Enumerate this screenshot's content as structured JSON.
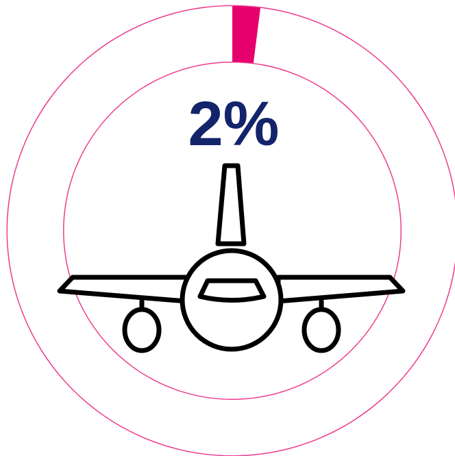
{
  "chart_data": {
    "type": "pie",
    "title": "",
    "value_label": "2%",
    "slices": [
      {
        "value": 2,
        "color": "#e6006e"
      },
      {
        "value": 98,
        "color": "#ffffff"
      }
    ]
  },
  "colors": {
    "ring_outline": "#ee3d8f",
    "highlight_slice": "#e6006e",
    "label_text": "#13246b",
    "icon_stroke": "#000000"
  },
  "icon": "airplane-front-icon"
}
